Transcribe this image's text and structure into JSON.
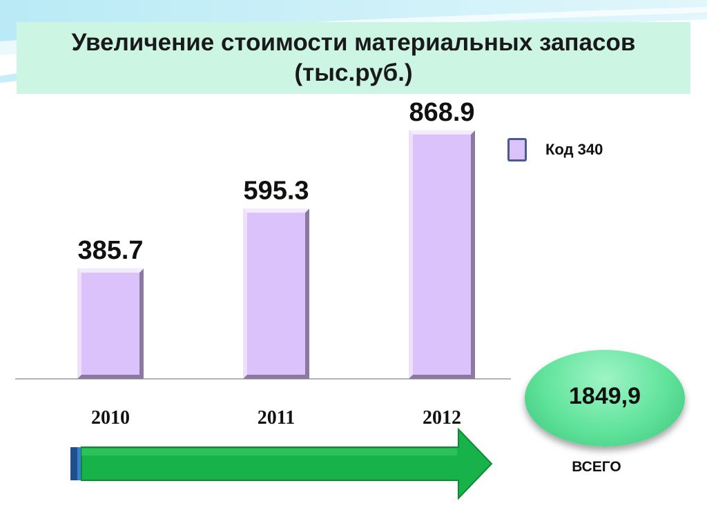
{
  "title": "Увеличение стоимости материальных запасов (тыс.руб.)",
  "colors": {
    "bar_fill": "#dcc2fa",
    "bar_shadow": "#8a7aa0",
    "title_bg": "#cdf5e4",
    "arrow_fill": "#18b24a",
    "total_oval": "#60e39b"
  },
  "chart_data": {
    "type": "bar",
    "categories": [
      "2010",
      "2011",
      "2012"
    ],
    "series": [
      {
        "name": "Код 340",
        "values": [
          385.7,
          595.3,
          868.9
        ]
      }
    ],
    "value_labels": [
      "385.7",
      "595.3",
      "868.9"
    ],
    "ylim": [
      0,
      1000
    ],
    "grid": false,
    "legend_position": "top-right"
  },
  "legend": {
    "label": "Код 340",
    "icon": "legend-square-icon"
  },
  "total": {
    "value": "1849,9",
    "label": "ВСЕГО"
  },
  "decor": {
    "arrow_icon": "right-arrow-icon"
  }
}
